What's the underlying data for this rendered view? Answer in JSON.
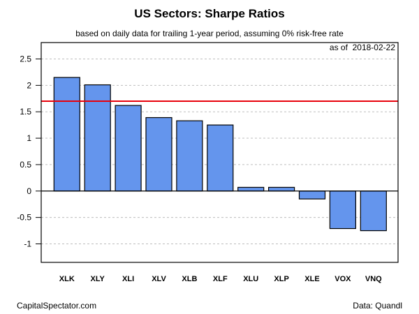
{
  "chart_data": {
    "type": "bar",
    "title": "US Sectors: Sharpe Ratios",
    "subtitle": "based on daily data for trailing 1-year period, assuming 0% risk-free rate",
    "annotation": "as of  2018-02-22",
    "xlabel": "",
    "ylabel": "",
    "categories": [
      "XLK",
      "XLY",
      "XLI",
      "XLV",
      "XLB",
      "XLF",
      "XLU",
      "XLP",
      "XLE",
      "VOX",
      "VNQ"
    ],
    "values": [
      2.15,
      2.01,
      1.62,
      1.39,
      1.33,
      1.25,
      0.07,
      0.07,
      -0.15,
      -0.71,
      -0.75
    ],
    "reference_line": {
      "value": 1.7,
      "color": "#e8000b"
    },
    "ylim": [
      -1.35,
      2.81
    ],
    "yticks": [
      -1,
      -0.5,
      0,
      0.5,
      1,
      1.5,
      2,
      2.5
    ],
    "ytick_labels": [
      "-1",
      "-0.5",
      "0",
      "0.5",
      "1",
      "1.5",
      "2",
      "2.5"
    ],
    "grid": true,
    "bar_color": "#6495ed",
    "legend": "none"
  },
  "footer": {
    "left": "CapitalSpectator.com",
    "right": "Data: Quandl"
  }
}
